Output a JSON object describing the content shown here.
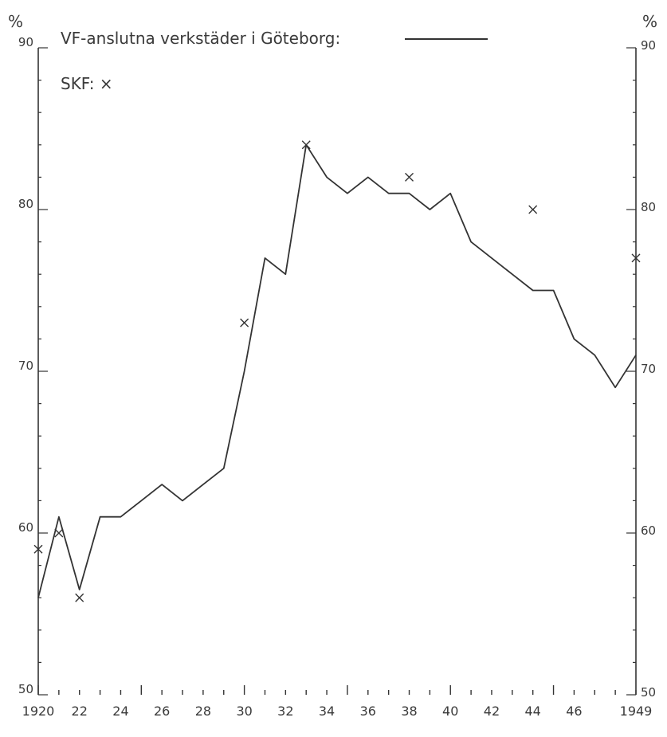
{
  "chart_data": {
    "type": "line",
    "title": "",
    "xlabel": "",
    "ylabel": "%",
    "ylabel_right": "%",
    "xlim": [
      1920,
      1949
    ],
    "ylim": [
      50,
      90
    ],
    "x_tick_labels": [
      {
        "x": 1920,
        "label": "1920"
      },
      {
        "x": 1922,
        "label": "22"
      },
      {
        "x": 1924,
        "label": "24"
      },
      {
        "x": 1926,
        "label": "26"
      },
      {
        "x": 1928,
        "label": "28"
      },
      {
        "x": 1930,
        "label": "30"
      },
      {
        "x": 1932,
        "label": "32"
      },
      {
        "x": 1934,
        "label": "34"
      },
      {
        "x": 1936,
        "label": "36"
      },
      {
        "x": 1938,
        "label": "38"
      },
      {
        "x": 1940,
        "label": "40"
      },
      {
        "x": 1942,
        "label": "42"
      },
      {
        "x": 1944,
        "label": "44"
      },
      {
        "x": 1946,
        "label": "46"
      },
      {
        "x": 1949,
        "label": "1949"
      }
    ],
    "y_tick_labels_left": [
      {
        "y": 50,
        "label": "50"
      },
      {
        "y": 60,
        "label": "60"
      },
      {
        "y": 70,
        "label": "70"
      },
      {
        "y": 80,
        "label": "80"
      },
      {
        "y": 90,
        "label": "90"
      }
    ],
    "y_tick_labels_right": [
      {
        "y": 50,
        "label": "50"
      },
      {
        "y": 60,
        "label": "60"
      },
      {
        "y": 70,
        "label": "70"
      },
      {
        "y": 80,
        "label": "80"
      },
      {
        "y": 90,
        "label": "90"
      }
    ],
    "legend": {
      "position": "top-left",
      "line_label": "VF-anslutna verkstäder i Göteborg:",
      "marker_label": "SKF: ×"
    },
    "series": [
      {
        "name": "VF-anslutna verkstäder i Göteborg",
        "style": "line",
        "points": [
          [
            1920,
            56
          ],
          [
            1921,
            61
          ],
          [
            1922,
            56.5
          ],
          [
            1923,
            61
          ],
          [
            1924,
            61
          ],
          [
            1925,
            62
          ],
          [
            1926,
            63
          ],
          [
            1927,
            62
          ],
          [
            1928,
            63
          ],
          [
            1929,
            64
          ],
          [
            1930,
            70
          ],
          [
            1931,
            77
          ],
          [
            1932,
            76
          ],
          [
            1933,
            84
          ],
          [
            1934,
            82
          ],
          [
            1935,
            81
          ],
          [
            1936,
            82
          ],
          [
            1937,
            81
          ],
          [
            1938,
            81
          ],
          [
            1939,
            80
          ],
          [
            1940,
            81
          ],
          [
            1941,
            78
          ],
          [
            1942,
            77
          ],
          [
            1943,
            76
          ],
          [
            1944,
            75
          ],
          [
            1945,
            75
          ],
          [
            1946,
            72
          ],
          [
            1947,
            71
          ],
          [
            1948,
            69
          ],
          [
            1949,
            71
          ]
        ]
      },
      {
        "name": "SKF",
        "style": "marker",
        "points": [
          [
            1920,
            59
          ],
          [
            1921,
            60
          ],
          [
            1922,
            56
          ],
          [
            1930,
            73
          ],
          [
            1933,
            84
          ],
          [
            1938,
            82
          ],
          [
            1944,
            80
          ],
          [
            1949,
            77
          ]
        ]
      }
    ],
    "grid": false
  }
}
